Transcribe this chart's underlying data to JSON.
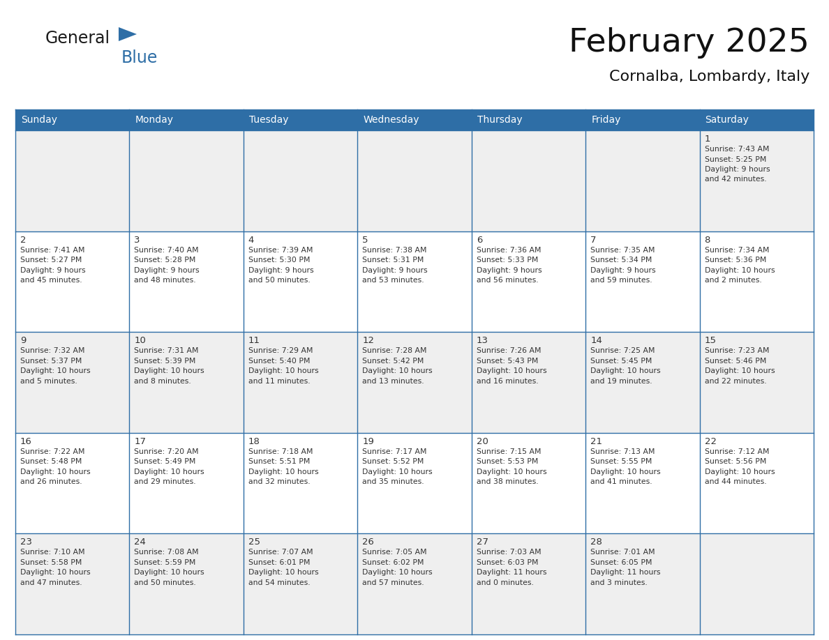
{
  "title": "February 2025",
  "subtitle": "Cornalba, Lombardy, Italy",
  "header_bg": "#2E6EA6",
  "header_text_color": "#FFFFFF",
  "cell_bg_light": "#EFEFEF",
  "cell_bg_white": "#FFFFFF",
  "border_color": "#2E6EA6",
  "text_color": "#333333",
  "day_headers": [
    "Sunday",
    "Monday",
    "Tuesday",
    "Wednesday",
    "Thursday",
    "Friday",
    "Saturday"
  ],
  "weeks": [
    [
      {
        "day": "",
        "info": ""
      },
      {
        "day": "",
        "info": ""
      },
      {
        "day": "",
        "info": ""
      },
      {
        "day": "",
        "info": ""
      },
      {
        "day": "",
        "info": ""
      },
      {
        "day": "",
        "info": ""
      },
      {
        "day": "1",
        "info": "Sunrise: 7:43 AM\nSunset: 5:25 PM\nDaylight: 9 hours\nand 42 minutes."
      }
    ],
    [
      {
        "day": "2",
        "info": "Sunrise: 7:41 AM\nSunset: 5:27 PM\nDaylight: 9 hours\nand 45 minutes."
      },
      {
        "day": "3",
        "info": "Sunrise: 7:40 AM\nSunset: 5:28 PM\nDaylight: 9 hours\nand 48 minutes."
      },
      {
        "day": "4",
        "info": "Sunrise: 7:39 AM\nSunset: 5:30 PM\nDaylight: 9 hours\nand 50 minutes."
      },
      {
        "day": "5",
        "info": "Sunrise: 7:38 AM\nSunset: 5:31 PM\nDaylight: 9 hours\nand 53 minutes."
      },
      {
        "day": "6",
        "info": "Sunrise: 7:36 AM\nSunset: 5:33 PM\nDaylight: 9 hours\nand 56 minutes."
      },
      {
        "day": "7",
        "info": "Sunrise: 7:35 AM\nSunset: 5:34 PM\nDaylight: 9 hours\nand 59 minutes."
      },
      {
        "day": "8",
        "info": "Sunrise: 7:34 AM\nSunset: 5:36 PM\nDaylight: 10 hours\nand 2 minutes."
      }
    ],
    [
      {
        "day": "9",
        "info": "Sunrise: 7:32 AM\nSunset: 5:37 PM\nDaylight: 10 hours\nand 5 minutes."
      },
      {
        "day": "10",
        "info": "Sunrise: 7:31 AM\nSunset: 5:39 PM\nDaylight: 10 hours\nand 8 minutes."
      },
      {
        "day": "11",
        "info": "Sunrise: 7:29 AM\nSunset: 5:40 PM\nDaylight: 10 hours\nand 11 minutes."
      },
      {
        "day": "12",
        "info": "Sunrise: 7:28 AM\nSunset: 5:42 PM\nDaylight: 10 hours\nand 13 minutes."
      },
      {
        "day": "13",
        "info": "Sunrise: 7:26 AM\nSunset: 5:43 PM\nDaylight: 10 hours\nand 16 minutes."
      },
      {
        "day": "14",
        "info": "Sunrise: 7:25 AM\nSunset: 5:45 PM\nDaylight: 10 hours\nand 19 minutes."
      },
      {
        "day": "15",
        "info": "Sunrise: 7:23 AM\nSunset: 5:46 PM\nDaylight: 10 hours\nand 22 minutes."
      }
    ],
    [
      {
        "day": "16",
        "info": "Sunrise: 7:22 AM\nSunset: 5:48 PM\nDaylight: 10 hours\nand 26 minutes."
      },
      {
        "day": "17",
        "info": "Sunrise: 7:20 AM\nSunset: 5:49 PM\nDaylight: 10 hours\nand 29 minutes."
      },
      {
        "day": "18",
        "info": "Sunrise: 7:18 AM\nSunset: 5:51 PM\nDaylight: 10 hours\nand 32 minutes."
      },
      {
        "day": "19",
        "info": "Sunrise: 7:17 AM\nSunset: 5:52 PM\nDaylight: 10 hours\nand 35 minutes."
      },
      {
        "day": "20",
        "info": "Sunrise: 7:15 AM\nSunset: 5:53 PM\nDaylight: 10 hours\nand 38 minutes."
      },
      {
        "day": "21",
        "info": "Sunrise: 7:13 AM\nSunset: 5:55 PM\nDaylight: 10 hours\nand 41 minutes."
      },
      {
        "day": "22",
        "info": "Sunrise: 7:12 AM\nSunset: 5:56 PM\nDaylight: 10 hours\nand 44 minutes."
      }
    ],
    [
      {
        "day": "23",
        "info": "Sunrise: 7:10 AM\nSunset: 5:58 PM\nDaylight: 10 hours\nand 47 minutes."
      },
      {
        "day": "24",
        "info": "Sunrise: 7:08 AM\nSunset: 5:59 PM\nDaylight: 10 hours\nand 50 minutes."
      },
      {
        "day": "25",
        "info": "Sunrise: 7:07 AM\nSunset: 6:01 PM\nDaylight: 10 hours\nand 54 minutes."
      },
      {
        "day": "26",
        "info": "Sunrise: 7:05 AM\nSunset: 6:02 PM\nDaylight: 10 hours\nand 57 minutes."
      },
      {
        "day": "27",
        "info": "Sunrise: 7:03 AM\nSunset: 6:03 PM\nDaylight: 11 hours\nand 0 minutes."
      },
      {
        "day": "28",
        "info": "Sunrise: 7:01 AM\nSunset: 6:05 PM\nDaylight: 11 hours\nand 3 minutes."
      },
      {
        "day": "",
        "info": ""
      }
    ]
  ],
  "logo_color_general": "#1a1a1a",
  "logo_color_blue": "#2E6EA6",
  "logo_triangle_color": "#2E6EA6",
  "title_fontsize": 34,
  "subtitle_fontsize": 16,
  "header_fontsize": 10,
  "day_num_fontsize": 9.5,
  "info_fontsize": 7.8
}
